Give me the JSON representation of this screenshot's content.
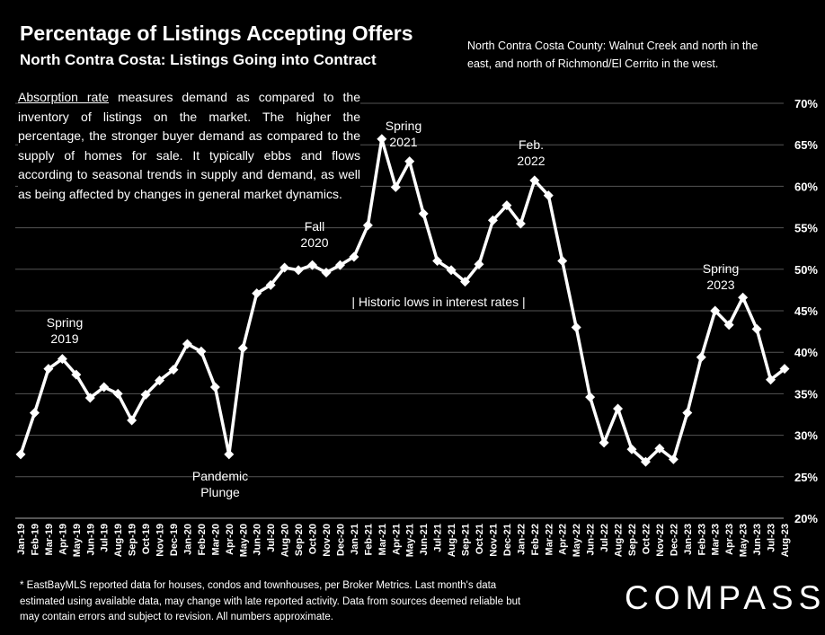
{
  "title": "Percentage of Listings Accepting Offers",
  "subtitle": "North Contra Costa: Listings Going into Contract",
  "region_note": "North Contra Costa County: Walnut Creek and north in the east, and north of Richmond/El Cerrito in the west.",
  "absorption": {
    "term": "Absorption rate",
    "text": " measures demand as compared to the inventory of listings on the market. The higher the percentage, the stronger buyer demand as compared to the supply of homes for sale. It typically ebbs and flows according to seasonal trends in supply and demand, as well as being affected by changes in general market dynamics."
  },
  "footnote": "* EastBayMLS reported data for houses, condos and townhouses, per Broker Metrics. Last month's data estimated using available data, may change with late reported activity. Data from sources deemed reliable but may contain errors and subject to revision. All numbers approximate.",
  "logo": "COMPASS",
  "colors": {
    "background": "#000000",
    "line": "#ffffff",
    "grid": "#555555"
  },
  "chart_data": {
    "type": "line",
    "categories": [
      "Jan-19",
      "Feb-19",
      "Mar-19",
      "Apr-19",
      "May-19",
      "Jun-19",
      "Jul-19",
      "Aug-19",
      "Sep-19",
      "Oct-19",
      "Nov-19",
      "Dec-19",
      "Jan-20",
      "Feb-20",
      "Mar-20",
      "Apr-20",
      "May-20",
      "Jun-20",
      "Jul-20",
      "Aug-20",
      "Sep-20",
      "Oct-20",
      "Nov-20",
      "Dec-20",
      "Jan-21",
      "Feb-21",
      "Mar-21",
      "Apr-21",
      "May-21",
      "Jun-21",
      "Jul-21",
      "Aug-21",
      "Sep-21",
      "Oct-21",
      "Nov-21",
      "Dec-21",
      "Jan-22",
      "Feb-22",
      "Mar-22",
      "Apr-22",
      "May-22",
      "Jun-22",
      "Jul-22",
      "Aug-22",
      "Sep-22",
      "Oct-22",
      "Nov-22",
      "Dec-22",
      "Jan-23",
      "Feb-23",
      "Mar-23",
      "Apr-23",
      "May-23",
      "Jun-23",
      "Jul-23",
      "Aug-23"
    ],
    "values": [
      27.7,
      32.7,
      38.0,
      39.2,
      37.3,
      34.5,
      35.8,
      35.0,
      31.8,
      34.9,
      36.6,
      37.9,
      41.0,
      40.1,
      35.8,
      27.7,
      40.5,
      47.1,
      48.1,
      50.2,
      49.9,
      50.5,
      49.6,
      50.5,
      51.5,
      55.3,
      65.7,
      59.9,
      63.0,
      56.7,
      51.0,
      49.9,
      48.5,
      50.6,
      55.9,
      57.7,
      55.5,
      60.7,
      58.9,
      51.0,
      43.0,
      34.6,
      29.1,
      33.2,
      28.3,
      26.8,
      28.4,
      27.1,
      32.7,
      39.4,
      45.0,
      43.3,
      46.6,
      42.8,
      36.7,
      38.0
    ],
    "ylim": [
      20,
      70
    ],
    "y_ticks": [
      "20%",
      "25%",
      "30%",
      "35%",
      "40%",
      "45%",
      "50%",
      "55%",
      "60%",
      "65%",
      "70%"
    ],
    "grid": true,
    "annotations": [
      {
        "text": "Spring",
        "text2": "2019"
      },
      {
        "text": "Pandemic",
        "text2": "Plunge"
      },
      {
        "text": "Fall",
        "text2": "2020"
      },
      {
        "text": "Spring",
        "text2": "2021"
      },
      {
        "text": "Feb.",
        "text2": "2022"
      },
      {
        "text": "Spring",
        "text2": "2023"
      },
      {
        "text": "| Historic lows in interest rates |"
      }
    ]
  }
}
